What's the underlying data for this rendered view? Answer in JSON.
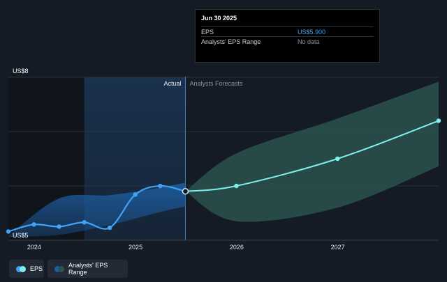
{
  "tooltip": {
    "date": "Jun 30 2025",
    "rows": [
      {
        "label": "EPS",
        "value": "US$5.900"
      },
      {
        "label": "Analysts' EPS Range",
        "value": "No data"
      }
    ]
  },
  "legend": {
    "eps": "EPS",
    "range": "Analysts' EPS Range"
  },
  "colors": {
    "background": "#151b24",
    "eps_line": "#3fa4f5",
    "forecast_line": "#7ff0ec",
    "forecast_band": "#2c5550",
    "history_band": "#1d5ea3"
  },
  "chart_data": {
    "type": "line",
    "y_axis_labels": [
      "US$8",
      "US$5"
    ],
    "ylim": [
      5,
      8
    ],
    "x_tick_labels": [
      "2024",
      "2025",
      "2026",
      "2027"
    ],
    "xlim": [
      "2023-09-30",
      "2027-12-31"
    ],
    "highlight_region": [
      "2024-06-30",
      "2025-06-30"
    ],
    "divider_labels": {
      "left": "Actual",
      "right": "Analysts Forecasts"
    },
    "series": [
      {
        "name": "EPS",
        "x": [
          "2023-09-30",
          "2023-12-31",
          "2024-03-31",
          "2024-06-30",
          "2024-09-30",
          "2024-12-31",
          "2025-03-31",
          "2025-06-30"
        ],
        "y": [
          5.16,
          5.29,
          5.25,
          5.33,
          5.23,
          5.84,
          6.0,
          5.9
        ]
      },
      {
        "name": "Analysts' EPS Range",
        "x": [
          "2025-06-30",
          "2025-12-31",
          "2026-12-31",
          "2027-12-31"
        ],
        "y": [
          5.9,
          6.0,
          6.5,
          7.2
        ],
        "low": [
          5.9,
          5.35,
          5.6,
          6.36
        ],
        "high": [
          5.9,
          6.6,
          7.24,
          7.92
        ]
      }
    ],
    "history_band": {
      "x": [
        "2023-09-30",
        "2024-03-31",
        "2024-09-30",
        "2025-03-31",
        "2025-06-30"
      ],
      "low": [
        5.06,
        5.1,
        5.28,
        5.52,
        5.62
      ],
      "high": [
        5.08,
        5.77,
        5.83,
        5.97,
        6.06
      ]
    }
  }
}
